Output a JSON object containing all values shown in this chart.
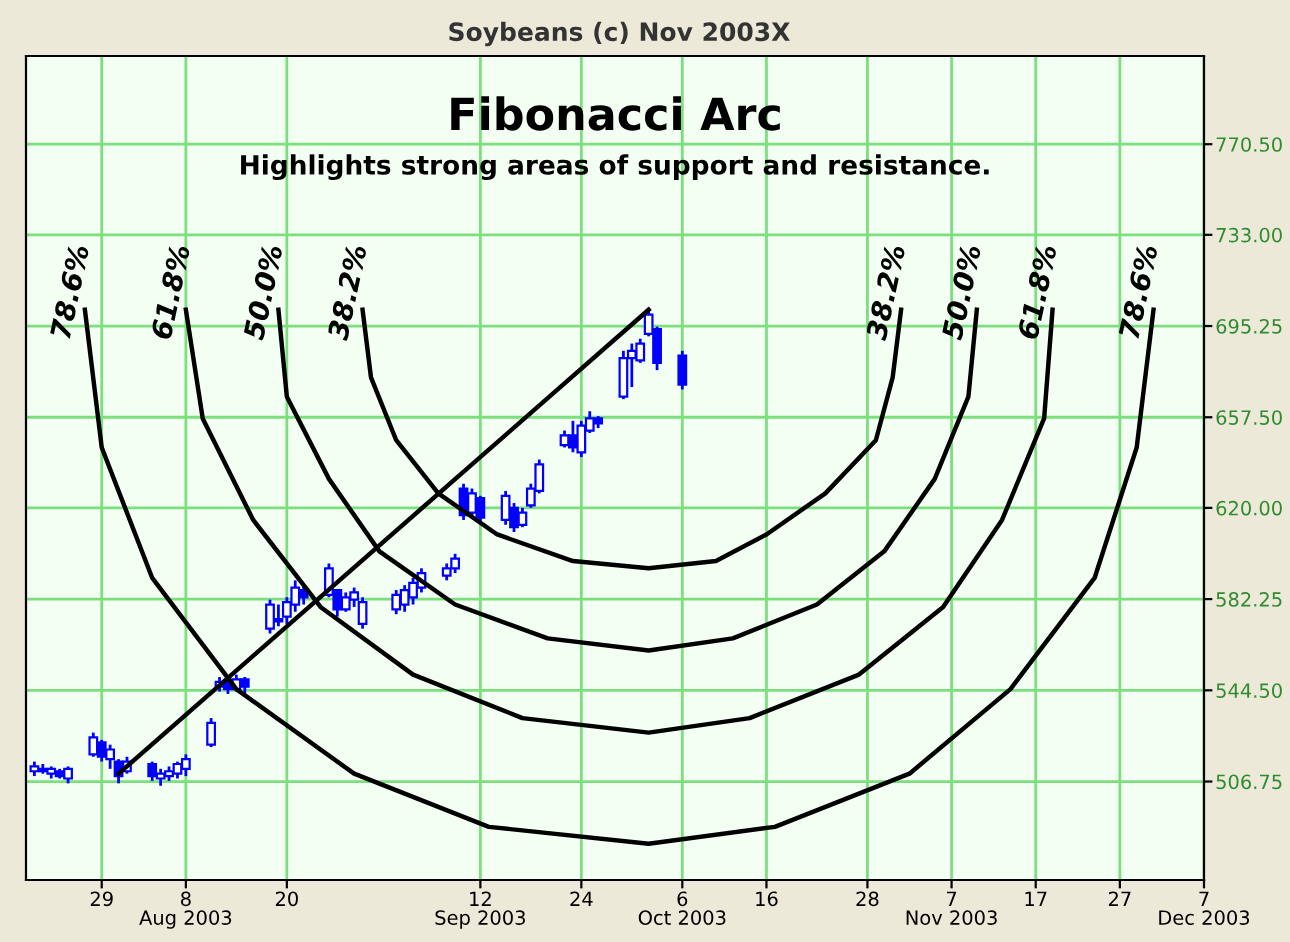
{
  "chart_data": {
    "type": "candlestick",
    "title": "Fibonacci Arc",
    "subtitle": "Highlights strong areas of support and resistance.",
    "annotations": [
      "Soybeans (c) Nov 2003X"
    ],
    "x": [
      "2003-07-21",
      "2003-07-22",
      "2003-07-23",
      "2003-07-24",
      "2003-07-25",
      "2003-07-28",
      "2003-07-29",
      "2003-07-30",
      "2003-07-31",
      "2003-08-01",
      "2003-08-04",
      "2003-08-05",
      "2003-08-06",
      "2003-08-07",
      "2003-08-08",
      "2003-08-11",
      "2003-08-12",
      "2003-08-13",
      "2003-08-14",
      "2003-08-15",
      "2003-08-18",
      "2003-08-19",
      "2003-08-20",
      "2003-08-21",
      "2003-08-22",
      "2003-08-25",
      "2003-08-26",
      "2003-08-27",
      "2003-08-28",
      "2003-08-29",
      "2003-09-02",
      "2003-09-03",
      "2003-09-04",
      "2003-09-05",
      "2003-09-08",
      "2003-09-09",
      "2003-09-10",
      "2003-09-11",
      "2003-09-12",
      "2003-09-15",
      "2003-09-16",
      "2003-09-17",
      "2003-09-18",
      "2003-09-19",
      "2003-09-22",
      "2003-09-23",
      "2003-09-24",
      "2003-09-25",
      "2003-09-26",
      "2003-09-29",
      "2003-09-30",
      "2003-10-01",
      "2003-10-02",
      "2003-10-03",
      "2003-10-06"
    ],
    "ohlc": [
      [
        511,
        515,
        509,
        513
      ],
      [
        512,
        514,
        510,
        511
      ],
      [
        510,
        513,
        508,
        512
      ],
      [
        511,
        512,
        508,
        509
      ],
      [
        508,
        513,
        506,
        512
      ],
      [
        518,
        527,
        517,
        525
      ],
      [
        523,
        524,
        515,
        517
      ],
      [
        516,
        522,
        512,
        520
      ],
      [
        515,
        516,
        506,
        509
      ],
      [
        511,
        517,
        510,
        515
      ],
      [
        514,
        515,
        507,
        509
      ],
      [
        508,
        512,
        505,
        510
      ],
      [
        509,
        513,
        507,
        511
      ],
      [
        510,
        515,
        508,
        514
      ],
      [
        512,
        518,
        509,
        516
      ],
      [
        522,
        533,
        521,
        531
      ],
      [
        546,
        550,
        544,
        548
      ],
      [
        548,
        550,
        543,
        545
      ],
      [
        545,
        551,
        544,
        549
      ],
      [
        549,
        550,
        543,
        546
      ],
      [
        570,
        582,
        568,
        580
      ],
      [
        573,
        580,
        571,
        574
      ],
      [
        575,
        583,
        572,
        581
      ],
      [
        580,
        590,
        577,
        587
      ],
      [
        586,
        588,
        580,
        583
      ],
      [
        584,
        597,
        583,
        595
      ],
      [
        586,
        586,
        575,
        578
      ],
      [
        578,
        585,
        577,
        583
      ],
      [
        582,
        587,
        579,
        585
      ],
      [
        572,
        583,
        570,
        581
      ],
      [
        578,
        586,
        576,
        584
      ],
      [
        580,
        588,
        577,
        586
      ],
      [
        583,
        591,
        580,
        589
      ],
      [
        587,
        595,
        585,
        593
      ],
      [
        592,
        597,
        590,
        595
      ],
      [
        595,
        601,
        593,
        599
      ],
      [
        628,
        630,
        615,
        617
      ],
      [
        618,
        628,
        617,
        626
      ],
      [
        624,
        625,
        614,
        616
      ],
      [
        615,
        627,
        613,
        625
      ],
      [
        620,
        622,
        610,
        612
      ],
      [
        613,
        620,
        612,
        618
      ],
      [
        621,
        630,
        620,
        628
      ],
      [
        627,
        640,
        626,
        638
      ],
      [
        646,
        652,
        645,
        650
      ],
      [
        650,
        656,
        643,
        645
      ],
      [
        643,
        656,
        641,
        654
      ],
      [
        652,
        660,
        651,
        657
      ],
      [
        657,
        658,
        653,
        655
      ],
      [
        666,
        685,
        665,
        682
      ],
      [
        682,
        688,
        670,
        685
      ],
      [
        681,
        690,
        680,
        688
      ],
      [
        692,
        702,
        691,
        700
      ],
      [
        694,
        695,
        677,
        680
      ],
      [
        683,
        685,
        669,
        671
      ]
    ],
    "color": "#0000ff",
    "series": [
      {
        "type": "line",
        "color": "#000000",
        "x": [
          "2003-07-31",
          "2003-10-02"
        ],
        "values": [
          510,
          702
        ]
      },
      {
        "type": "line",
        "name": "38.2%",
        "color": "#000000",
        "x": [
          "2003-08-29",
          "2003-08-30",
          "2003-09-02",
          "2003-09-07",
          "2003-09-14",
          "2003-09-23",
          "2003-10-02",
          "2003-10-10",
          "2003-10-16",
          "2003-10-23",
          "2003-10-29",
          "2003-10-31",
          "2003-11-01"
        ],
        "values": [
          702,
          674,
          648,
          626,
          609,
          598,
          595,
          598,
          609,
          626,
          648,
          674,
          702
        ]
      },
      {
        "type": "line",
        "name": "50.0%",
        "color": "#000000",
        "x": [
          "2003-08-19",
          "2003-08-20",
          "2003-08-25",
          "2003-08-31",
          "2003-09-09",
          "2003-09-20",
          "2003-10-02",
          "2003-10-12",
          "2003-10-22",
          "2003-10-30",
          "2003-11-05",
          "2003-11-09",
          "2003-11-10"
        ],
        "values": [
          702,
          666,
          632,
          602,
          580,
          566,
          561,
          566,
          580,
          602,
          632,
          666,
          702
        ]
      },
      {
        "type": "line",
        "name": "61.8%",
        "color": "#000000",
        "x": [
          "2003-08-08",
          "2003-08-10",
          "2003-08-16",
          "2003-08-24",
          "2003-09-04",
          "2003-09-17",
          "2003-10-02",
          "2003-10-14",
          "2003-10-27",
          "2003-11-06",
          "2003-11-13",
          "2003-11-18",
          "2003-11-19"
        ],
        "values": [
          702,
          657,
          615,
          579,
          551,
          533,
          527,
          533,
          551,
          579,
          615,
          657,
          702
        ]
      },
      {
        "type": "line",
        "name": "78.6%",
        "color": "#000000",
        "x": [
          "2003-07-27",
          "2003-07-29",
          "2003-08-04",
          "2003-08-14",
          "2003-08-28",
          "2003-09-13",
          "2003-10-02",
          "2003-10-17",
          "2003-11-02",
          "2003-11-14",
          "2003-11-24",
          "2003-11-29",
          "2003-12-01"
        ],
        "values": [
          702,
          645,
          591,
          545,
          510,
          488,
          481,
          488,
          510,
          545,
          591,
          645,
          702
        ]
      }
    ],
    "xlim": [
      "2003-07-20",
      "2003-12-07"
    ],
    "xticks": [
      {
        "value": "2003-07-29",
        "label": "29"
      },
      {
        "value": "2003-08-08",
        "label": "8\nAug 2003"
      },
      {
        "value": "2003-08-20",
        "label": "20"
      },
      {
        "value": "2003-09-12",
        "label": "12\nSep 2003"
      },
      {
        "value": "2003-09-24",
        "label": "24"
      },
      {
        "value": "2003-10-06",
        "label": "6\nOct 2003"
      },
      {
        "value": "2003-10-16",
        "label": "16"
      },
      {
        "value": "2003-10-28",
        "label": "28"
      },
      {
        "value": "2003-11-07",
        "label": "7\nNov 2003"
      },
      {
        "value": "2003-11-17",
        "label": "17"
      },
      {
        "value": "2003-11-27",
        "label": "27"
      },
      {
        "value": "2003-12-07",
        "label": "7\nDec 2003"
      }
    ],
    "ylim": [
      466,
      807
    ],
    "yticks": [
      506.75,
      {
        "value": 544.5,
        "label": "544.50"
      },
      582.25,
      {
        "value": 620,
        "label": "620.00"
      },
      {
        "value": 657.5,
        "label": "657.50"
      },
      695.25,
      {
        "value": 733,
        "label": "733.00"
      },
      {
        "value": 770.5,
        "label": "770.50"
      }
    ],
    "grid": true,
    "legend": false
  }
}
